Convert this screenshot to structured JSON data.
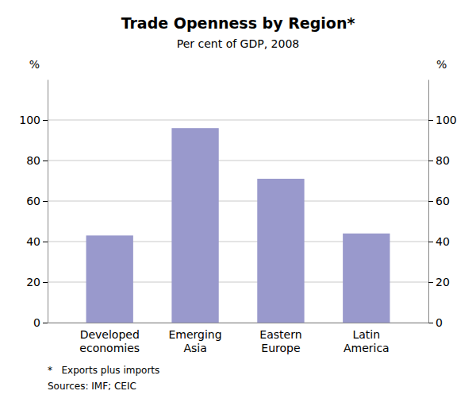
{
  "chart_data": {
    "type": "bar",
    "title": "Trade Openness by Region*",
    "subtitle": "Per cent of GDP, 2008",
    "categories": [
      "Developed\neconomies",
      "Emerging\nAsia",
      "Eastern\nEurope",
      "Latin\nAmerica"
    ],
    "values": [
      43,
      96,
      71,
      44
    ],
    "color": "#9999cc",
    "ylim": [
      0,
      120
    ],
    "yticks": [
      0,
      20,
      40,
      60,
      80,
      100
    ],
    "y2lim": [
      0,
      120
    ],
    "y2ticks": [
      0,
      20,
      40,
      60,
      80,
      100
    ],
    "ylabel": "%",
    "y2label": "%",
    "footnotes": [
      "*   Exports plus imports",
      "Sources: IMF; CEIC"
    ],
    "grid": true
  }
}
